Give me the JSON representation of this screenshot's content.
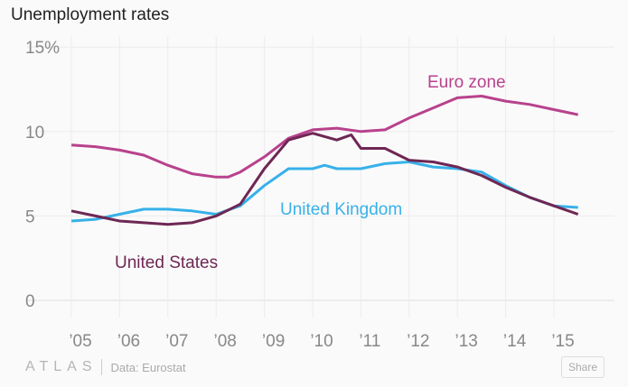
{
  "title": "Unemployment rates",
  "footer": {
    "logo": "ATLAS",
    "source": "Data: Eurostat",
    "share": "Share"
  },
  "colors": {
    "euro": "#b8428c",
    "us": "#6e2754",
    "uk": "#37b1e9"
  },
  "chart_data": {
    "type": "line",
    "title": "Unemployment rates",
    "xlabel": "",
    "ylabel": "",
    "ylim": [
      0,
      15
    ],
    "xlim": [
      2004.6,
      2016
    ],
    "y_ticks": [
      {
        "v": 0,
        "label": "0"
      },
      {
        "v": 5,
        "label": "5"
      },
      {
        "v": 10,
        "label": "10"
      },
      {
        "v": 15,
        "label": "15%"
      }
    ],
    "x_ticks": [
      {
        "v": 2005,
        "label": "’05"
      },
      {
        "v": 2006,
        "label": "’06"
      },
      {
        "v": 2007,
        "label": "’07"
      },
      {
        "v": 2008,
        "label": "’08"
      },
      {
        "v": 2009,
        "label": "’09"
      },
      {
        "v": 2010,
        "label": "’10"
      },
      {
        "v": 2011,
        "label": "’11"
      },
      {
        "v": 2012,
        "label": "’12"
      },
      {
        "v": 2013,
        "label": "’13"
      },
      {
        "v": 2014,
        "label": "’14"
      },
      {
        "v": 2015,
        "label": "’15"
      }
    ],
    "grid": true,
    "series": [
      {
        "name": "Euro zone",
        "key": "euro",
        "x": [
          2005,
          2005.5,
          2006,
          2006.5,
          2007,
          2007.5,
          2008,
          2008.25,
          2008.5,
          2009,
          2009.5,
          2010,
          2010.5,
          2011,
          2011.5,
          2012,
          2012.5,
          2013,
          2013.5,
          2014,
          2014.5,
          2015,
          2015.5
        ],
        "values": [
          9.2,
          9.1,
          8.9,
          8.6,
          8.0,
          7.5,
          7.3,
          7.3,
          7.6,
          8.5,
          9.6,
          10.1,
          10.2,
          10.0,
          10.1,
          10.8,
          11.4,
          12.0,
          12.1,
          11.8,
          11.6,
          11.3,
          11.0
        ]
      },
      {
        "name": "United Kingdom",
        "key": "uk",
        "x": [
          2005,
          2005.5,
          2006,
          2006.5,
          2007,
          2007.5,
          2008,
          2008.5,
          2009,
          2009.5,
          2010,
          2010.25,
          2010.5,
          2011,
          2011.5,
          2012,
          2012.5,
          2013,
          2013.5,
          2014,
          2014.5,
          2015,
          2015.5
        ],
        "values": [
          4.7,
          4.8,
          5.1,
          5.4,
          5.4,
          5.3,
          5.1,
          5.6,
          6.8,
          7.8,
          7.8,
          8.0,
          7.8,
          7.8,
          8.1,
          8.2,
          7.9,
          7.8,
          7.6,
          6.8,
          6.1,
          5.6,
          5.5
        ]
      },
      {
        "name": "United States",
        "key": "us",
        "x": [
          2005,
          2005.5,
          2006,
          2006.5,
          2007,
          2007.5,
          2008,
          2008.5,
          2009,
          2009.5,
          2010,
          2010.5,
          2010.8,
          2011,
          2011.5,
          2012,
          2012.5,
          2013,
          2013.5,
          2014,
          2014.5,
          2015,
          2015.5
        ],
        "values": [
          5.3,
          5.0,
          4.7,
          4.6,
          4.5,
          4.6,
          5.0,
          5.7,
          7.8,
          9.5,
          9.9,
          9.5,
          9.8,
          9.0,
          9.0,
          8.3,
          8.2,
          7.9,
          7.4,
          6.7,
          6.1,
          5.6,
          5.1
        ]
      }
    ]
  }
}
